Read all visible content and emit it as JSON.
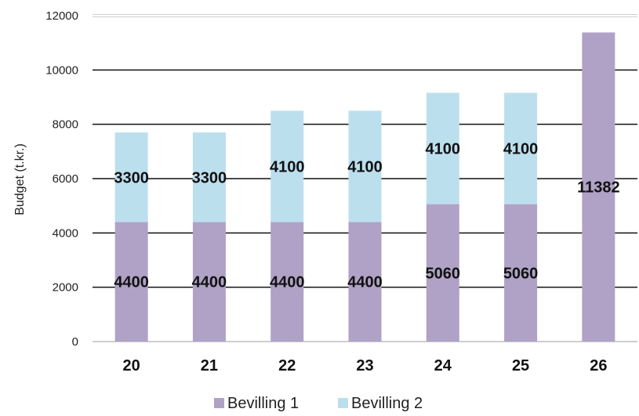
{
  "chart_data": {
    "type": "bar",
    "stacked": true,
    "categories": [
      "20",
      "21",
      "22",
      "23",
      "24",
      "25",
      "26"
    ],
    "series": [
      {
        "name": "Bevilling 1",
        "values": [
          4400,
          4400,
          4400,
          4400,
          5060,
          5060,
          11382
        ],
        "color": "#b0a2c6"
      },
      {
        "name": "Bevilling 2",
        "values": [
          3300,
          3300,
          4100,
          4100,
          4100,
          4100,
          0
        ],
        "color": "#bcdfee"
      }
    ],
    "title": "",
    "xlabel": "",
    "ylabel": "Budget (t.kr.)",
    "ylim": [
      0,
      12000
    ],
    "yticks": [
      "0",
      "2000",
      "4000",
      "6000",
      "8000",
      "10000",
      "12000"
    ],
    "grid": true,
    "legend": "bottom-center"
  }
}
